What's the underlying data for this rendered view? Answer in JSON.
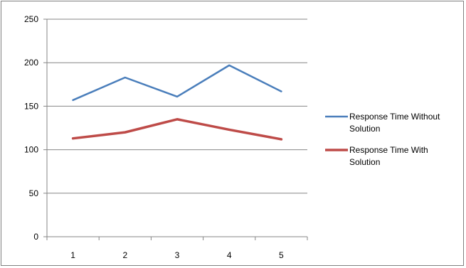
{
  "chart_data": {
    "type": "line",
    "title": "",
    "xlabel": "",
    "ylabel": "",
    "categories": [
      "1",
      "2",
      "3",
      "4",
      "5"
    ],
    "ylim": [
      0,
      250
    ],
    "yticks": [
      "0",
      "50",
      "100",
      "150",
      "200",
      "250"
    ],
    "grid": "horizontal",
    "legend_position": "right",
    "series": [
      {
        "name": "Response Time Without Solution",
        "name_lines": [
          "Response Time Without",
          "Solution"
        ],
        "color": "#4a7ebb",
        "values": [
          157,
          183,
          161,
          197,
          167
        ]
      },
      {
        "name": "Response Time With Solution",
        "name_lines": [
          "Response Time With",
          "Solution"
        ],
        "color": "#be4b48",
        "values": [
          113,
          120,
          135,
          123,
          112
        ]
      }
    ]
  }
}
